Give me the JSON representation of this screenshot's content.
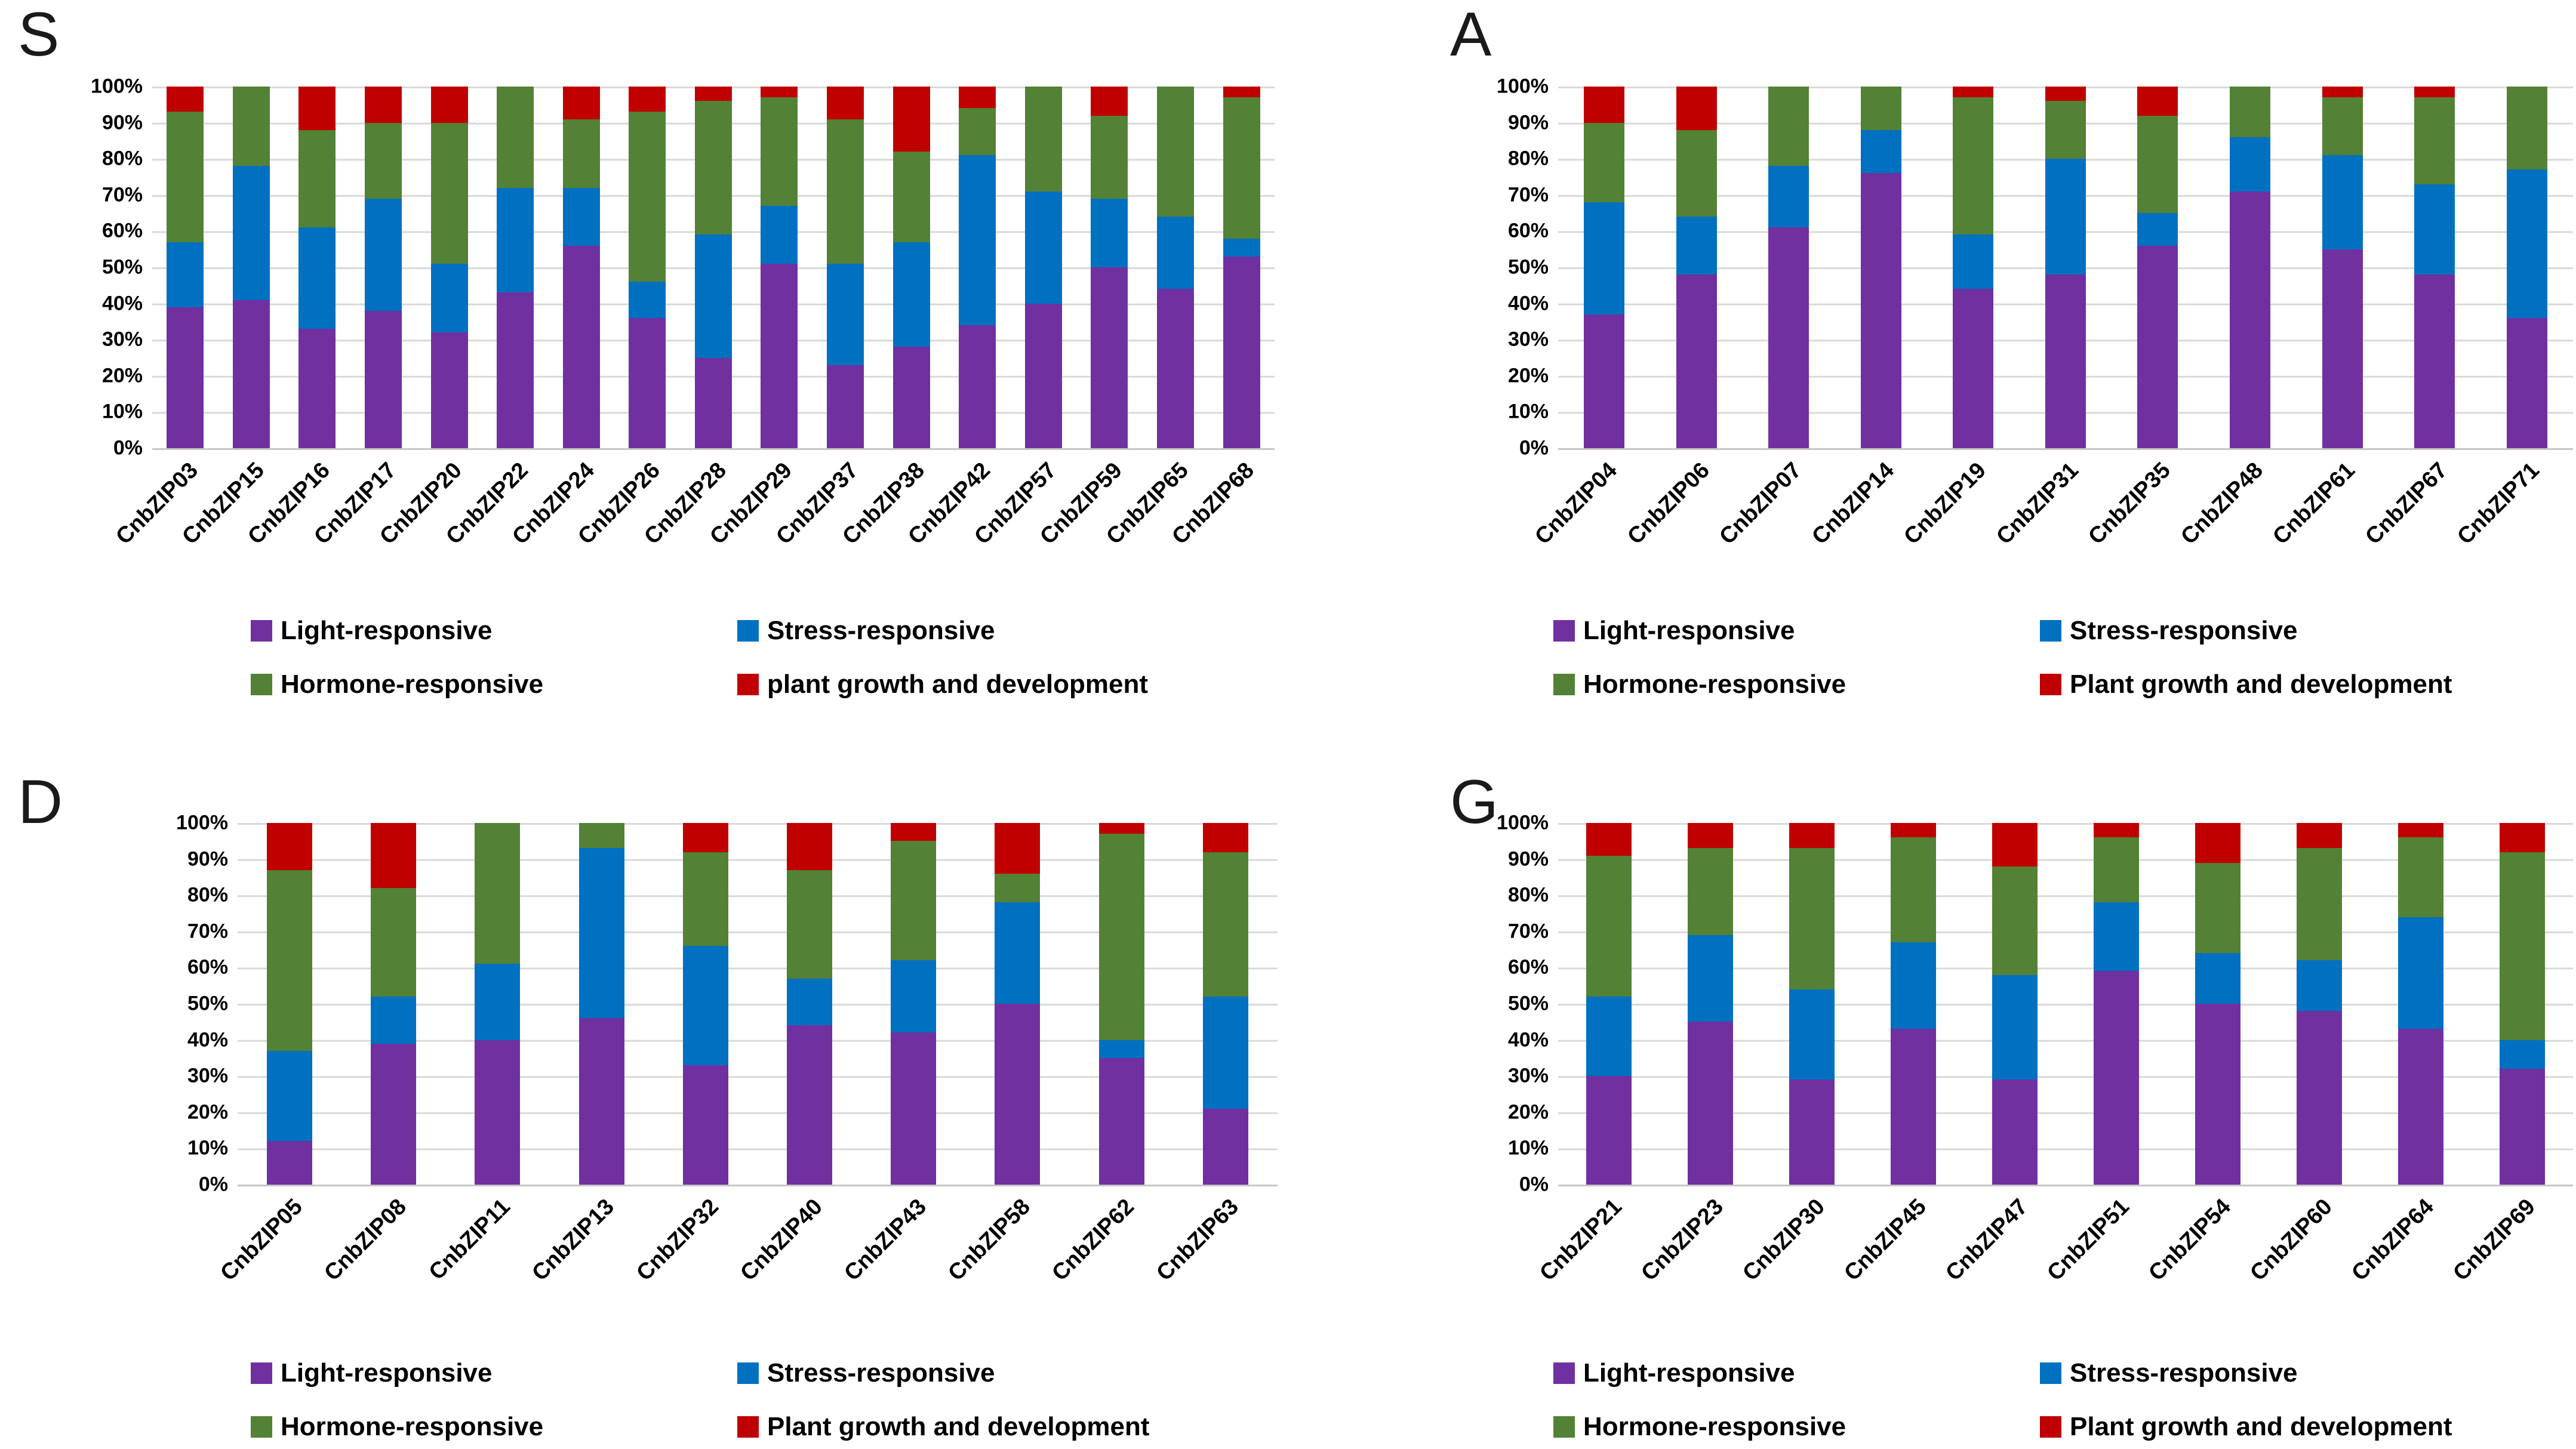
{
  "colors": {
    "light": "#7030A0",
    "stress": "#0070C0",
    "hormone": "#538135",
    "growth": "#C00000",
    "gridline": "#D9D9D9",
    "axis_line": "#C6C6C6"
  },
  "y_ticks": [
    "100%",
    "90%",
    "80%",
    "70%",
    "60%",
    "50%",
    "40%",
    "30%",
    "20%",
    "10%",
    "0%"
  ],
  "chart_data": [
    {
      "type": "bar",
      "subtype": "stacked-100",
      "panel_letter": "S",
      "ylim": [
        0,
        100
      ],
      "grid": true,
      "legend_position": "bottom",
      "legend": [
        "Light-responsive",
        "Stress-responsive",
        "Hormone-responsive",
        "plant growth and development"
      ],
      "categories": [
        "CnbZIP03",
        "CnbZIP15",
        "CnbZIP16",
        "CnbZIP17",
        "CnbZIP20",
        "CnbZIP22",
        "CnbZIP24",
        "CnbZIP26",
        "CnbZIP28",
        "CnbZIP29",
        "CnbZIP37",
        "CnbZIP38",
        "CnbZIP42",
        "CnbZIP57",
        "CnbZIP59",
        "CnbZIP65",
        "CnbZIP68"
      ],
      "series": [
        {
          "name": "Light-responsive",
          "values": [
            39,
            41,
            33,
            38,
            32,
            43,
            56,
            36,
            25,
            51,
            23,
            28,
            34,
            40,
            50,
            44,
            53
          ]
        },
        {
          "name": "Stress-responsive",
          "values": [
            18,
            37,
            28,
            31,
            19,
            29,
            16,
            10,
            34,
            16,
            28,
            29,
            47,
            31,
            19,
            20,
            5
          ]
        },
        {
          "name": "Hormone-responsive",
          "values": [
            36,
            22,
            27,
            21,
            39,
            28,
            19,
            47,
            37,
            30,
            40,
            25,
            13,
            29,
            23,
            36,
            39
          ]
        },
        {
          "name": "plant growth and development",
          "values": [
            7,
            0,
            12,
            10,
            10,
            0,
            9,
            7,
            4,
            3,
            9,
            18,
            6,
            0,
            8,
            0,
            3
          ]
        }
      ]
    },
    {
      "type": "bar",
      "subtype": "stacked-100",
      "panel_letter": "A",
      "ylim": [
        0,
        100
      ],
      "grid": true,
      "legend_position": "bottom",
      "legend": [
        "Light-responsive",
        "Stress-responsive",
        "Hormone-responsive",
        "Plant growth and development"
      ],
      "categories": [
        "CnbZIP04",
        "CnbZIP06",
        "CnbZIP07",
        "CnbZIP14",
        "CnbZIP19",
        "CnbZIP31",
        "CnbZIP35",
        "CnbZIP48",
        "CnbZIP61",
        "CnbZIP67",
        "CnbZIP71"
      ],
      "series": [
        {
          "name": "Light-responsive",
          "values": [
            37,
            48,
            61,
            76,
            44,
            48,
            56,
            71,
            55,
            48,
            36
          ]
        },
        {
          "name": "Stress-responsive",
          "values": [
            31,
            16,
            17,
            12,
            15,
            32,
            9,
            15,
            26,
            25,
            41
          ]
        },
        {
          "name": "Hormone-responsive",
          "values": [
            22,
            24,
            22,
            12,
            38,
            16,
            27,
            14,
            16,
            24,
            23
          ]
        },
        {
          "name": "Plant growth and development",
          "values": [
            10,
            12,
            0,
            0,
            3,
            4,
            8,
            0,
            3,
            3,
            0
          ]
        }
      ]
    },
    {
      "type": "bar",
      "subtype": "stacked-100",
      "panel_letter": "D",
      "ylim": [
        0,
        100
      ],
      "grid": true,
      "legend_position": "bottom",
      "legend": [
        "Light-responsive",
        "Stress-responsive",
        "Hormone-responsive",
        "Plant growth and development"
      ],
      "categories": [
        "CnbZIP05",
        "CnbZIP08",
        "CnbZIP11",
        "CnbZIP13",
        "CnbZIP32",
        "CnbZIP40",
        "CnbZIP43",
        "CnbZIP58",
        "CnbZIP62",
        "CnbZIP63"
      ],
      "series": [
        {
          "name": "Light-responsive",
          "values": [
            12,
            39,
            40,
            46,
            33,
            44,
            42,
            50,
            35,
            21
          ]
        },
        {
          "name": "Stress-responsive",
          "values": [
            25,
            13,
            21,
            47,
            33,
            13,
            20,
            28,
            5,
            31
          ]
        },
        {
          "name": "Hormone-responsive",
          "values": [
            50,
            30,
            39,
            7,
            26,
            30,
            33,
            8,
            57,
            40
          ]
        },
        {
          "name": "Plant growth and development",
          "values": [
            13,
            18,
            0,
            0,
            8,
            13,
            5,
            14,
            3,
            8
          ]
        }
      ]
    },
    {
      "type": "bar",
      "subtype": "stacked-100",
      "panel_letter": "G",
      "ylim": [
        0,
        100
      ],
      "grid": true,
      "legend_position": "bottom",
      "legend": [
        "Light-responsive",
        "Stress-responsive",
        "Hormone-responsive",
        "Plant growth and development"
      ],
      "categories": [
        "CnbZIP21",
        "CnbZIP23",
        "CnbZIP30",
        "CnbZIP45",
        "CnbZIP47",
        "CnbZIP51",
        "CnbZIP54",
        "CnbZIP60",
        "CnbZIP64",
        "CnbZIP69"
      ],
      "series": [
        {
          "name": "Light-responsive",
          "values": [
            30,
            45,
            29,
            43,
            29,
            59,
            50,
            48,
            43,
            32
          ]
        },
        {
          "name": "Stress-responsive",
          "values": [
            22,
            24,
            25,
            24,
            29,
            19,
            14,
            14,
            31,
            8
          ]
        },
        {
          "name": "Hormone-responsive",
          "values": [
            39,
            24,
            39,
            29,
            30,
            18,
            25,
            31,
            22,
            52
          ]
        },
        {
          "name": "Plant growth and development",
          "values": [
            9,
            7,
            7,
            4,
            12,
            4,
            11,
            7,
            4,
            8
          ]
        }
      ]
    }
  ]
}
